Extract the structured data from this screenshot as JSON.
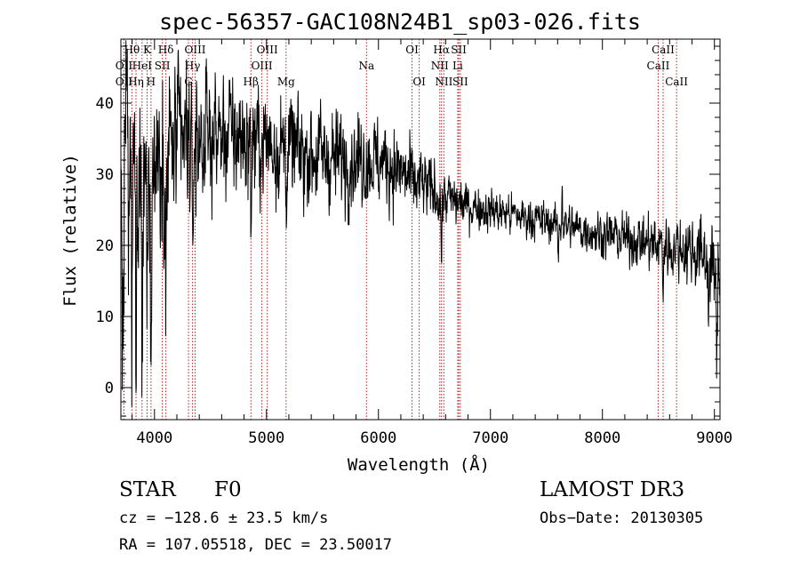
{
  "chart_data": {
    "type": "line",
    "title": "spec-56357-GAC108N24B1_sp03-026.fits",
    "xlabel": "Wavelength (Å)",
    "ylabel": "Flux (relative)",
    "xlim": [
      3700,
      9050
    ],
    "ylim": [
      -4.5,
      49
    ],
    "xticks": [
      4000,
      5000,
      6000,
      7000,
      8000,
      9000
    ],
    "xtick_labels": [
      "4000",
      "5000",
      "6000",
      "7000",
      "8000",
      "9000"
    ],
    "yticks": [
      0,
      10,
      20,
      30,
      40
    ],
    "ytick_labels": [
      "0",
      "10",
      "20",
      "30",
      "40"
    ],
    "line_color": "#000000",
    "marker_color": "#b22222",
    "continuum": [
      [
        3700,
        29
      ],
      [
        3760,
        38
      ],
      [
        3820,
        31
      ],
      [
        3880,
        27
      ],
      [
        3960,
        31
      ],
      [
        4050,
        33
      ],
      [
        4150,
        34
      ],
      [
        4300,
        34.5
      ],
      [
        4500,
        35.5
      ],
      [
        4700,
        35.5
      ],
      [
        4900,
        34.5
      ],
      [
        5000,
        34.5
      ],
      [
        5200,
        33.5
      ],
      [
        5500,
        32.5
      ],
      [
        5800,
        32
      ],
      [
        5950,
        32
      ],
      [
        6100,
        31.5
      ],
      [
        6300,
        29
      ],
      [
        6500,
        27.5
      ],
      [
        6700,
        26
      ],
      [
        7000,
        25
      ],
      [
        7300,
        24
      ],
      [
        7600,
        23
      ],
      [
        7900,
        22
      ],
      [
        8200,
        21
      ],
      [
        8500,
        20
      ],
      [
        8800,
        19.5
      ],
      [
        8950,
        18
      ],
      [
        9000,
        16
      ]
    ],
    "absorption": [
      {
        "x": 3720,
        "depth": 28,
        "width": 10
      },
      {
        "x": 3770,
        "depth": 20,
        "width": 6
      },
      {
        "x": 3798,
        "depth": 29,
        "width": 6
      },
      {
        "x": 3835,
        "depth": 30,
        "width": 7
      },
      {
        "x": 3889,
        "depth": 28,
        "width": 7
      },
      {
        "x": 3934,
        "depth": 22,
        "width": 6
      },
      {
        "x": 3969,
        "depth": 22,
        "width": 7
      },
      {
        "x": 4102,
        "depth": 20,
        "width": 7
      },
      {
        "x": 4340,
        "depth": 18,
        "width": 7
      },
      {
        "x": 4861,
        "depth": 10,
        "width": 6
      },
      {
        "x": 5175,
        "depth": 6,
        "width": 5
      },
      {
        "x": 6563,
        "depth": 9,
        "width": 6
      },
      {
        "x": 7605,
        "depth": 5,
        "width": 5
      },
      {
        "x": 8542,
        "depth": 5,
        "width": 6
      },
      {
        "x": 8950,
        "depth": 8,
        "width": 5
      },
      {
        "x": 9020,
        "depth": 14,
        "width": 6
      }
    ],
    "emission": [
      {
        "x": 7640,
        "height": 7,
        "width": 4
      }
    ],
    "noise": [
      [
        3700,
        7
      ],
      [
        3900,
        6
      ],
      [
        4200,
        4.5
      ],
      [
        4600,
        4
      ],
      [
        5000,
        3.5
      ],
      [
        5600,
        3
      ],
      [
        6200,
        2.5
      ],
      [
        6800,
        1.4
      ],
      [
        7500,
        1.2
      ],
      [
        8400,
        1.6
      ],
      [
        9050,
        2.6
      ]
    ],
    "lines": [
      {
        "name": "OII",
        "x": 3727,
        "row": 2
      },
      {
        "name": "Hθ",
        "x": 3798,
        "row": 0
      },
      {
        "name": "OII",
        "x": 3727,
        "row": 1
      },
      {
        "name": "Hη",
        "x": 3835,
        "row": 2
      },
      {
        "name": "HeI",
        "x": 3889,
        "row": 1
      },
      {
        "name": "K",
        "x": 3934,
        "row": 0
      },
      {
        "name": "SII",
        "x": 4070,
        "row": 1
      },
      {
        "name": "H",
        "x": 3969,
        "row": 2
      },
      {
        "name": "Hδ",
        "x": 4102,
        "row": 0
      },
      {
        "name": "OIII",
        "x": 4363,
        "row": 0
      },
      {
        "name": "Hγ",
        "x": 4340,
        "row": 1
      },
      {
        "name": "G",
        "x": 4304,
        "row": 2
      },
      {
        "name": "OIII",
        "x": 5007,
        "row": 0
      },
      {
        "name": "OIII",
        "x": 4959,
        "row": 1
      },
      {
        "name": "Hβ",
        "x": 4861,
        "row": 2
      },
      {
        "name": "Mg",
        "x": 5175,
        "row": 2
      },
      {
        "name": "Na",
        "x": 5893,
        "row": 1
      },
      {
        "name": "OI",
        "x": 6300,
        "row": 0
      },
      {
        "name": "OI",
        "x": 6364,
        "row": 2
      },
      {
        "name": "Hα",
        "x": 6563,
        "row": 0
      },
      {
        "name": "SII",
        "x": 6717,
        "row": 0
      },
      {
        "name": "NII",
        "x": 6548,
        "row": 1
      },
      {
        "name": "Li",
        "x": 6708,
        "row": 1
      },
      {
        "name": "NII",
        "x": 6584,
        "row": 2
      },
      {
        "name": "SII",
        "x": 6731,
        "row": 2
      },
      {
        "name": "CaII",
        "x": 8542,
        "row": 0
      },
      {
        "name": "CaII",
        "x": 8498,
        "row": 1
      },
      {
        "name": "CaII",
        "x": 8662,
        "row": 2
      }
    ]
  },
  "info": {
    "object_class": "STAR",
    "subclass": "F0",
    "survey": "LAMOST DR3",
    "redshift_line": "cz = −128.6 ± 23.5 km/s",
    "obs_date_line": "Obs−Date: 20130305",
    "coords_line": "RA = 107.05518, DEC =  23.50017"
  }
}
